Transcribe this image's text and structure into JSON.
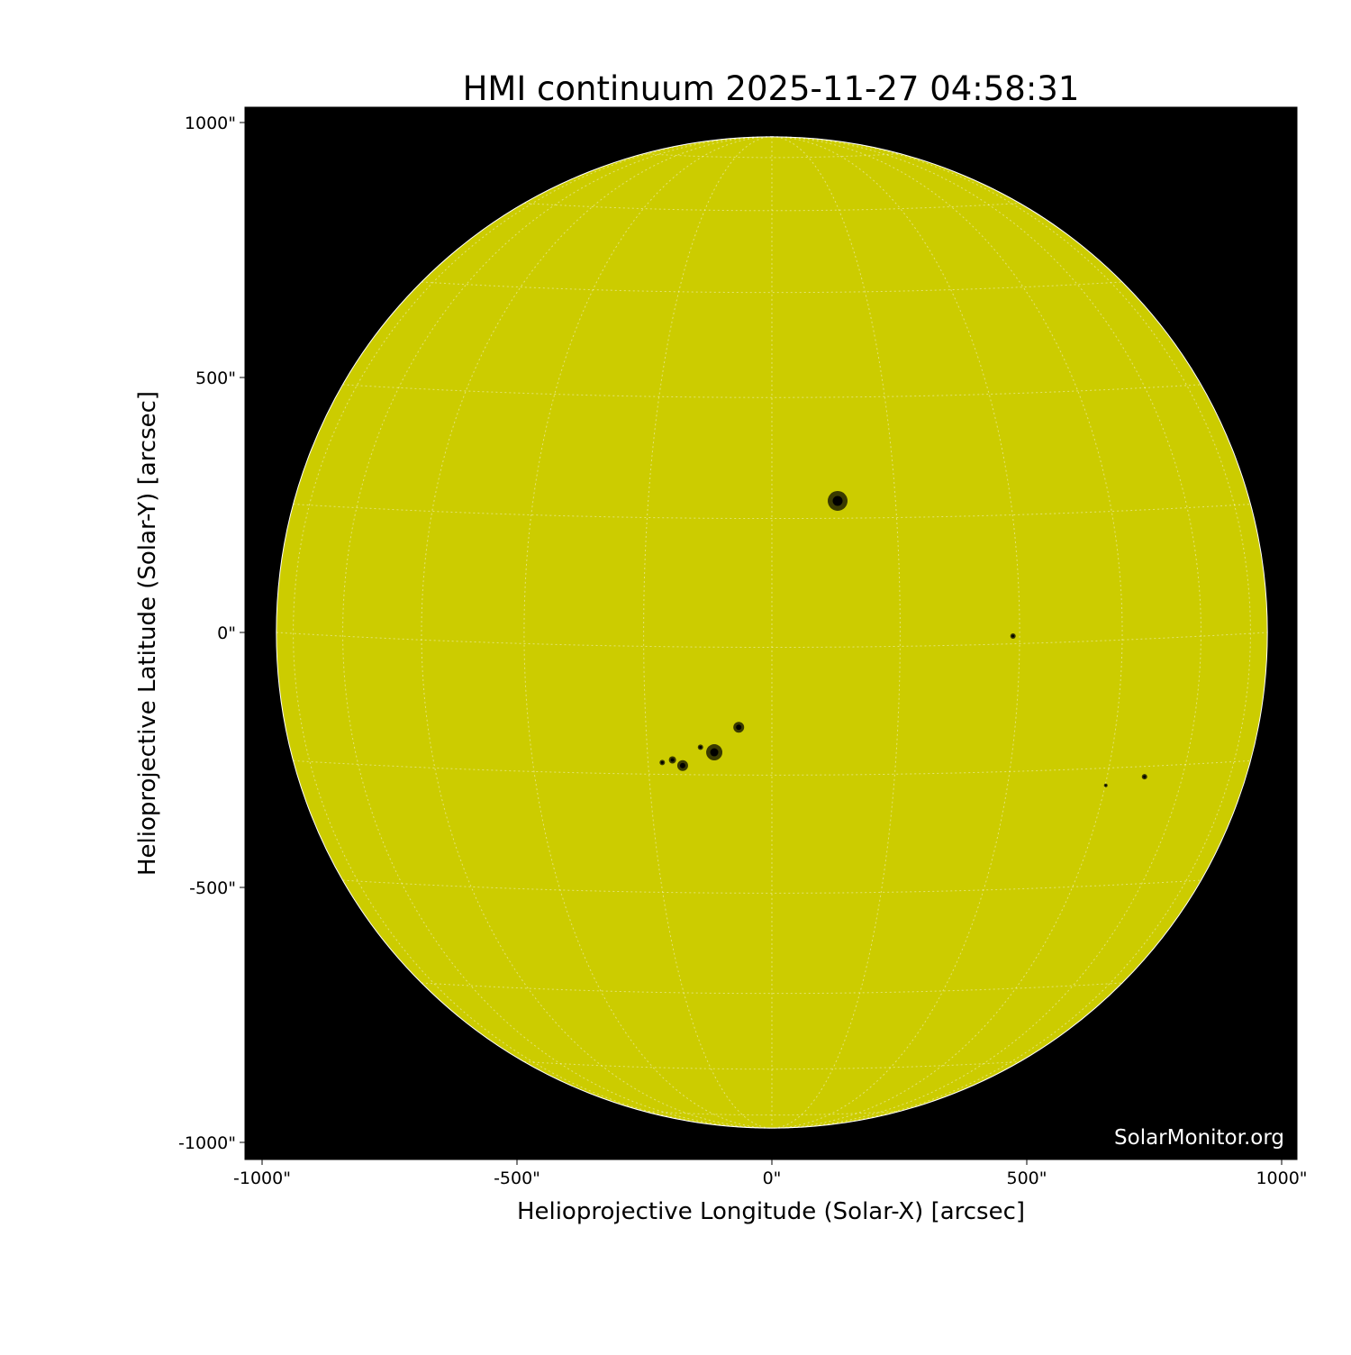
{
  "chart_data": {
    "type": "heatmap",
    "title": "HMI continuum 2025-11-27 04:58:31",
    "xlabel": "Helioprojective Longitude (Solar-X) [arcsec]",
    "ylabel": "Helioprojective Latitude (Solar-Y) [arcsec]",
    "xlim": [
      -1033,
      1033
    ],
    "ylim": [
      -1033,
      1033
    ],
    "xticks": [
      {
        "value": -1000,
        "label": "-1000\""
      },
      {
        "value": -500,
        "label": "-500\""
      },
      {
        "value": 0,
        "label": "0\""
      },
      {
        "value": 500,
        "label": "500\""
      },
      {
        "value": 1000,
        "label": "1000\""
      }
    ],
    "yticks": [
      {
        "value": 1000,
        "label": "1000\""
      },
      {
        "value": 500,
        "label": "500\""
      },
      {
        "value": 0,
        "label": "0\""
      },
      {
        "value": -500,
        "label": "-500\""
      },
      {
        "value": -1000,
        "label": "-1000\""
      }
    ],
    "solar_radius_arcsec": 972,
    "grid_spacing_deg": 15,
    "grid": true,
    "sunspots": [
      {
        "x": 129,
        "y": 258,
        "size": 11
      },
      {
        "x": -113,
        "y": -235,
        "size": 9
      },
      {
        "x": -65,
        "y": -186,
        "size": 6
      },
      {
        "x": -175,
        "y": -261,
        "size": 6
      },
      {
        "x": -195,
        "y": -250,
        "size": 4
      },
      {
        "x": -215,
        "y": -255,
        "size": 3
      },
      {
        "x": -140,
        "y": -225,
        "size": 3
      },
      {
        "x": 473,
        "y": -7,
        "size": 3
      },
      {
        "x": 731,
        "y": -283,
        "size": 3
      },
      {
        "x": 655,
        "y": -300,
        "size": 2
      }
    ],
    "colors": {
      "disk": "#cccc00",
      "background": "#000000",
      "grid": "#ffffff"
    }
  },
  "watermark": "SolarMonitor.org"
}
